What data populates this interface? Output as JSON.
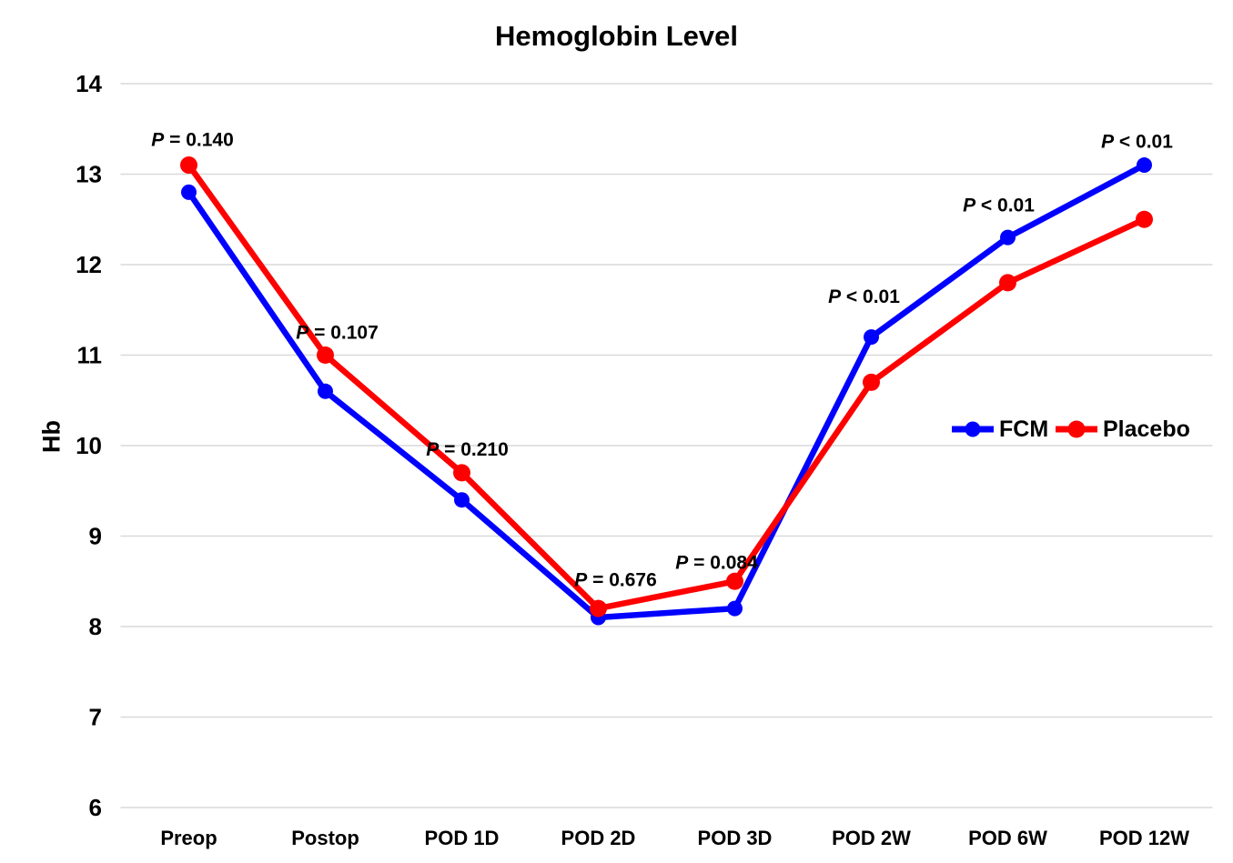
{
  "title": "Hemoglobin Level",
  "y_axis_label": "Hb",
  "colors": {
    "fcm_blue": "#0000FF",
    "placebo_red": "#FF0000",
    "gridline": "#D9D9D9",
    "text": "#000000",
    "background": "#FFFFFF"
  },
  "chart_data": {
    "type": "line",
    "title": "Hemoglobin Level",
    "xlabel": "",
    "ylabel": "Hb",
    "ylim": [
      6,
      14
    ],
    "ytick_step": 1,
    "grid": true,
    "legend_position": "inside-right-middle",
    "categories": [
      "Preop",
      "Postop",
      "POD 1D",
      "POD 2D",
      "POD 3D",
      "POD 2W",
      "POD 6W",
      "POD 12W"
    ],
    "series": [
      {
        "name": "FCM",
        "color": "#0000FF",
        "values": [
          12.8,
          10.6,
          9.4,
          8.1,
          8.2,
          11.2,
          12.3,
          13.1
        ]
      },
      {
        "name": "Placebo",
        "color": "#FF0000",
        "values": [
          13.1,
          11.0,
          9.7,
          8.2,
          8.5,
          10.7,
          11.8,
          12.5
        ]
      }
    ],
    "annotations": [
      {
        "label": "P = 0.140",
        "italic_prefix": "P",
        "rest": " = 0.140",
        "category_index": 0,
        "y": 13.38,
        "dx": 4
      },
      {
        "label": "P = 0.107",
        "italic_prefix": "P",
        "rest": " = 0.107",
        "category_index": 1,
        "y": 11.25,
        "dx": 13
      },
      {
        "label": "P = 0.210",
        "italic_prefix": "P",
        "rest": " = 0.210",
        "category_index": 2,
        "y": 9.96,
        "dx": 6
      },
      {
        "label": "P = 0.676",
        "italic_prefix": "P",
        "rest": " = 0.676",
        "category_index": 3,
        "y": 8.52,
        "dx": 19
      },
      {
        "label": "P = 0.084",
        "italic_prefix": "P",
        "rest": " = 0.084",
        "category_index": 4,
        "y": 8.71,
        "dx": -20
      },
      {
        "label": "P < 0.01",
        "italic_prefix": "P",
        "rest": " < 0.01",
        "category_index": 5,
        "y": 11.65,
        "dx": -8
      },
      {
        "label": "P < 0.01",
        "italic_prefix": "P",
        "rest": " < 0.01",
        "category_index": 6,
        "y": 12.66,
        "dx": -10
      },
      {
        "label": "P < 0.01",
        "italic_prefix": "P",
        "rest": " < 0.01",
        "category_index": 7,
        "y": 13.36,
        "dx": -8
      }
    ]
  }
}
